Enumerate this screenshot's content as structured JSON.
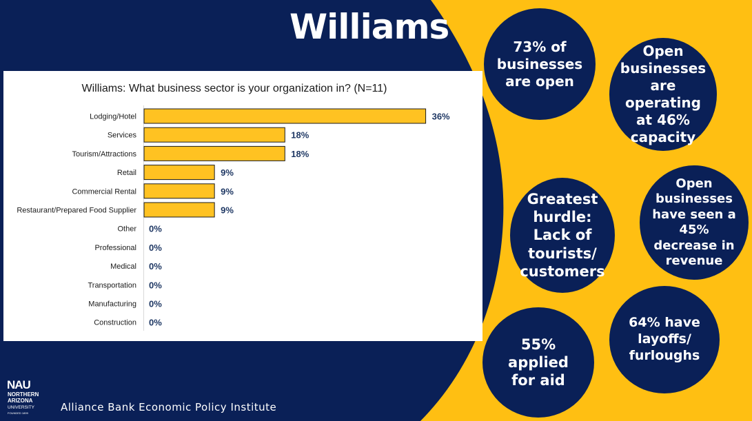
{
  "slide": {
    "title": "Williams",
    "colors": {
      "navy": "#0a2057",
      "gold": "#ffbf12",
      "bar": "#ffc222",
      "label_blue": "#1f3864"
    }
  },
  "chart_data": {
    "type": "bar",
    "orientation": "horizontal",
    "title": "Williams: What business sector is your organization in? (N=11)",
    "categories": [
      "Lodging/Hotel",
      "Services",
      "Tourism/Attractions",
      "Retail",
      "Commercial Rental",
      "Restaurant/Prepared Food Supplier",
      "Other",
      "Professional",
      "Medical",
      "Transportation",
      "Manufacturing",
      "Construction"
    ],
    "values": [
      36,
      18,
      18,
      9,
      9,
      9,
      0,
      0,
      0,
      0,
      0,
      0
    ],
    "value_labels": [
      "36%",
      "18%",
      "18%",
      "9%",
      "9%",
      "9%",
      "0%",
      "0%",
      "0%",
      "0%",
      "0%",
      "0%"
    ],
    "xlim": [
      0,
      50
    ],
    "grid": false,
    "legend": "none"
  },
  "circles": [
    {
      "id": "open",
      "text": "73% of businesses are open"
    },
    {
      "id": "capacity",
      "text": "Open businesses are operating at 46% capacity"
    },
    {
      "id": "hurdle",
      "text": "Greatest hurdle: Lack of tourists/ customers"
    },
    {
      "id": "revenue",
      "text": "Open businesses have seen a 45% decrease in revenue"
    },
    {
      "id": "aid",
      "text": "55% applied for aid"
    },
    {
      "id": "layoffs",
      "text": "64% have layoffs/ furloughs"
    }
  ],
  "footer": {
    "logo_lines": [
      "NAU",
      "NORTHERN",
      "ARIZONA",
      "UNIVERSITY",
      "FOUNDED 1899"
    ],
    "institute": "Alliance Bank Economic Policy Institute"
  }
}
